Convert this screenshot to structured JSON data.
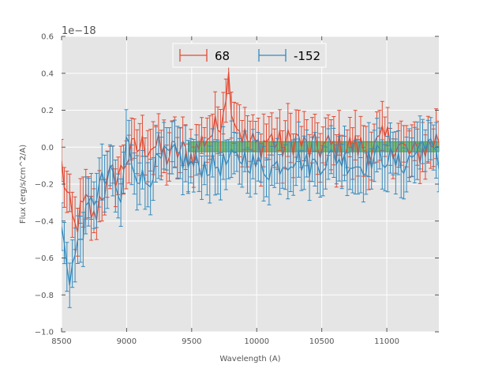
{
  "chart_data": {
    "type": "line",
    "title": "",
    "xlabel": "Wavelength (A)",
    "ylabel": "Flux (erg/s/cm^2/A)",
    "y_offset_text": "1e−18",
    "xlim": [
      8500,
      11400
    ],
    "ylim": [
      -1.0,
      0.6
    ],
    "x_ticks": [
      8500,
      9000,
      9500,
      10000,
      10500,
      11000
    ],
    "x_tick_labels": [
      "8500",
      "9000",
      "9500",
      "10000",
      "10500",
      "11000"
    ],
    "y_ticks": [
      -1.0,
      -0.8,
      -0.6,
      -0.4,
      -0.2,
      0.0,
      0.2,
      0.4,
      0.6
    ],
    "y_tick_labels": [
      "−1.0",
      "−0.8",
      "−0.6",
      "−0.4",
      "−0.2",
      "0.0",
      "0.2",
      "0.4",
      "0.6"
    ],
    "grid": true,
    "legend_position": "top-center",
    "shaded_band": {
      "x_start": 9480,
      "x_end": 11400,
      "y_low": -0.025,
      "y_high": 0.03,
      "color": "#2ca02c"
    },
    "x_range": {
      "start": 8500,
      "end": 11400,
      "n_points": 141
    },
    "series": [
      {
        "name": "68",
        "color": "#e24a33",
        "anchors": [
          [
            8500,
            -0.1
          ],
          [
            8550,
            -0.3
          ],
          [
            8600,
            -0.45
          ],
          [
            8650,
            -0.35
          ],
          [
            8700,
            -0.3
          ],
          [
            8750,
            -0.4
          ],
          [
            8800,
            -0.25
          ],
          [
            8850,
            -0.2
          ],
          [
            8900,
            -0.15
          ],
          [
            8950,
            -0.15
          ],
          [
            9000,
            -0.05
          ],
          [
            9100,
            0.0
          ],
          [
            9200,
            0.02
          ],
          [
            9300,
            -0.05
          ],
          [
            9400,
            -0.02
          ],
          [
            9500,
            -0.05
          ],
          [
            9600,
            0.05
          ],
          [
            9700,
            0.1
          ],
          [
            9750,
            0.25
          ],
          [
            9780,
            0.4
          ],
          [
            9820,
            0.18
          ],
          [
            9900,
            0.05
          ],
          [
            10000,
            0.0
          ],
          [
            10100,
            0.05
          ],
          [
            10200,
            0.0
          ],
          [
            10300,
            0.05
          ],
          [
            10400,
            -0.02
          ],
          [
            10500,
            0.0
          ],
          [
            10600,
            0.0
          ],
          [
            10700,
            0.0
          ],
          [
            10800,
            0.0
          ],
          [
            10900,
            -0.02
          ],
          [
            11000,
            0.05
          ],
          [
            11100,
            0.0
          ],
          [
            11200,
            -0.05
          ],
          [
            11300,
            0.0
          ],
          [
            11400,
            0.05
          ]
        ],
        "noise_amplitude": 0.09,
        "error": 0.12
      },
      {
        "name": "-152",
        "color": "#348abd",
        "anchors": [
          [
            8500,
            -0.45
          ],
          [
            8560,
            -0.7
          ],
          [
            8620,
            -0.55
          ],
          [
            8700,
            -0.35
          ],
          [
            8800,
            -0.2
          ],
          [
            8900,
            -0.15
          ],
          [
            8950,
            -0.35
          ],
          [
            9000,
            0.05
          ],
          [
            9050,
            -0.1
          ],
          [
            9100,
            -0.15
          ],
          [
            9150,
            -0.2
          ],
          [
            9200,
            -0.12
          ],
          [
            9300,
            -0.05
          ],
          [
            9400,
            -0.05
          ],
          [
            9500,
            -0.1
          ],
          [
            9600,
            -0.1
          ],
          [
            9700,
            -0.1
          ],
          [
            9800,
            -0.08
          ],
          [
            9900,
            -0.05
          ],
          [
            10000,
            -0.1
          ],
          [
            10100,
            -0.12
          ],
          [
            10200,
            -0.08
          ],
          [
            10300,
            -0.05
          ],
          [
            10400,
            -0.1
          ],
          [
            10500,
            -0.08
          ],
          [
            10600,
            -0.05
          ],
          [
            10700,
            -0.08
          ],
          [
            10800,
            -0.1
          ],
          [
            10900,
            -0.05
          ],
          [
            11000,
            -0.05
          ],
          [
            11100,
            -0.1
          ],
          [
            11200,
            -0.05
          ],
          [
            11250,
            0.0
          ],
          [
            11300,
            0.05
          ],
          [
            11400,
            -0.1
          ]
        ],
        "noise_amplitude": 0.07,
        "error": 0.13
      }
    ]
  }
}
